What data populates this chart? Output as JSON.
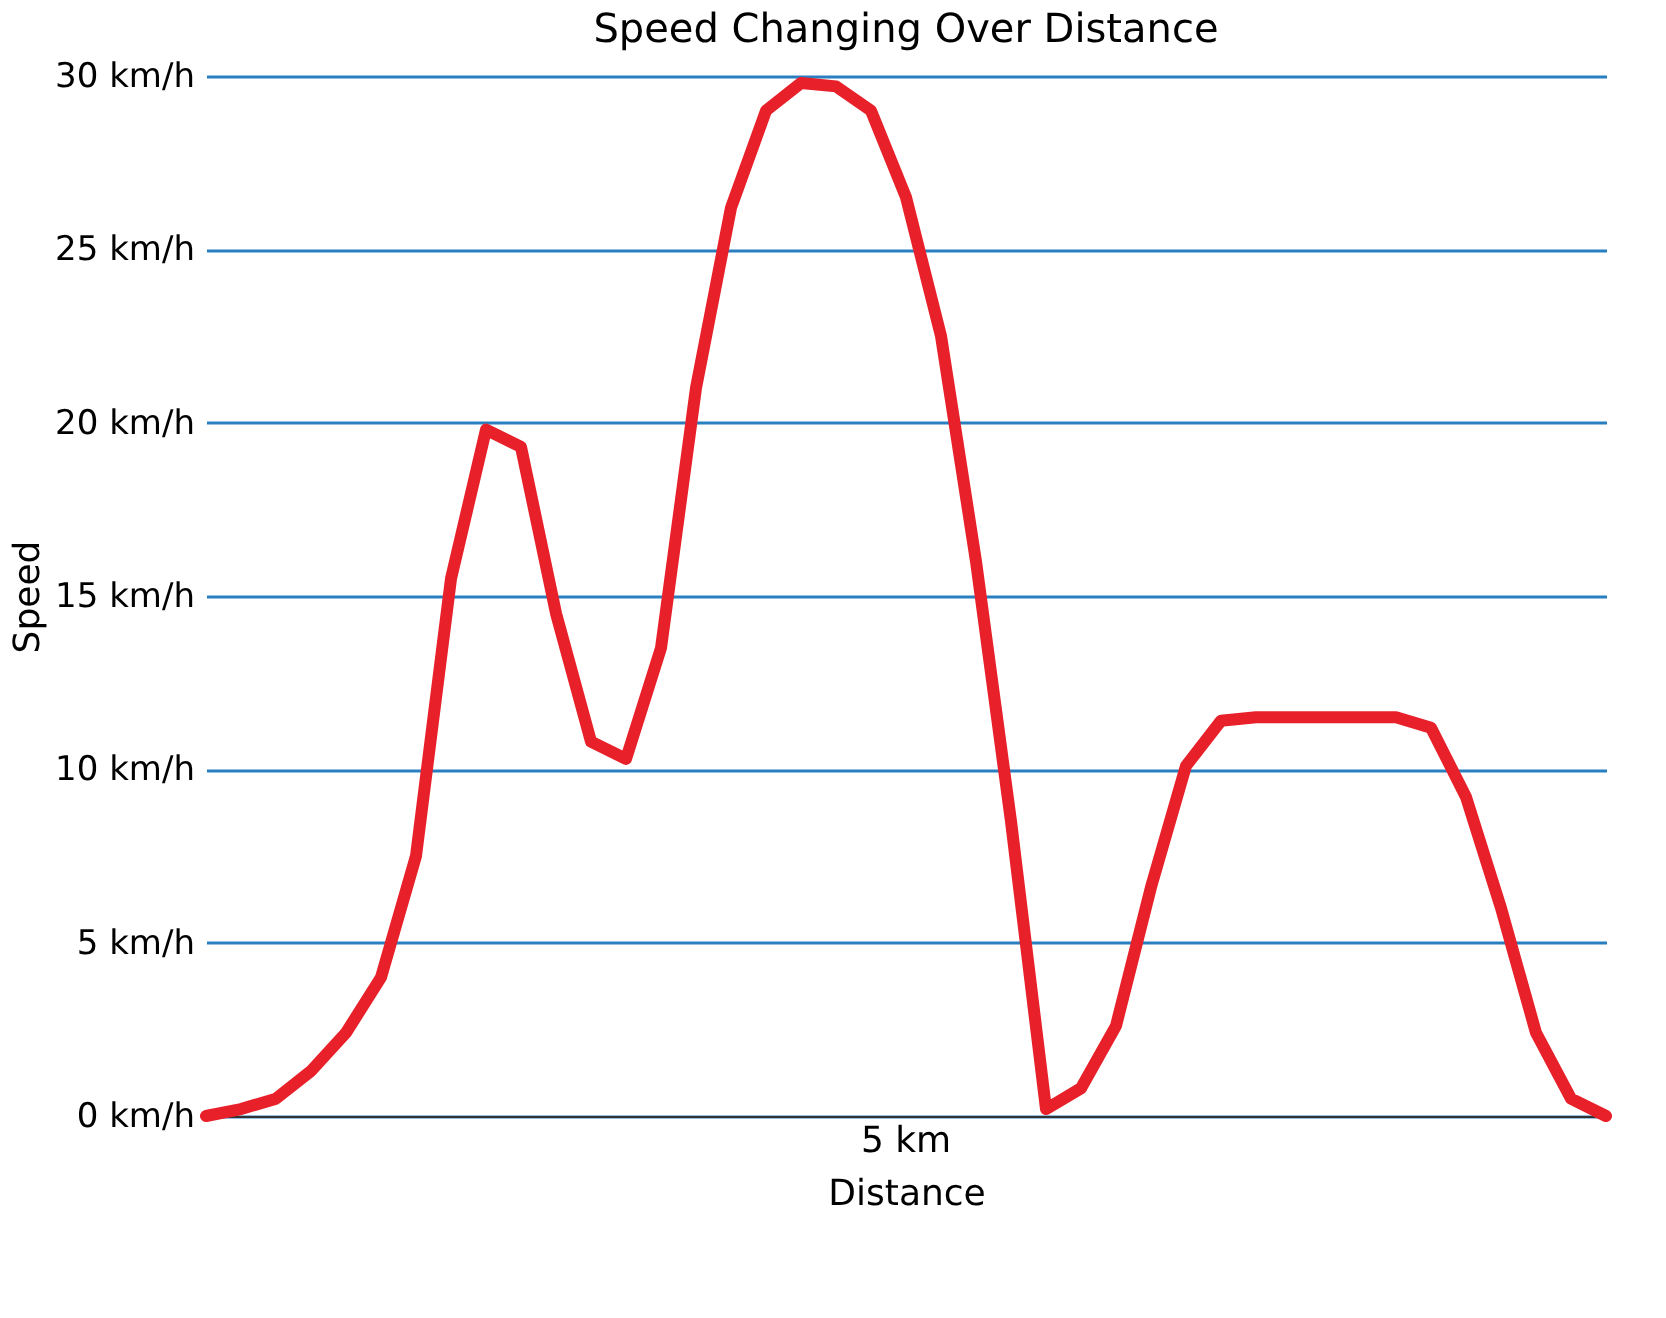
{
  "chart_data": {
    "type": "line",
    "title": "Speed Changing Over Distance",
    "xlabel": "Distance",
    "ylabel": "Speed",
    "categories": [
      null,
      null,
      null,
      null,
      null,
      null,
      null,
      null,
      null,
      null,
      null,
      null,
      null,
      null,
      null,
      null,
      null,
      null,
      null,
      null,
      null,
      null,
      null,
      null,
      null,
      null,
      null,
      null,
      null,
      null,
      null,
      null,
      null,
      null,
      null,
      null,
      null,
      null,
      null,
      null,
      null
    ],
    "series": [
      {
        "color": "#e8202a",
        "values": [
          0,
          0.2,
          0.5,
          1.3,
          2.4,
          4.0,
          7.5,
          15.5,
          19.8,
          19.3,
          14.5,
          10.8,
          10.3,
          13.5,
          21.0,
          26.2,
          29.0,
          29.8,
          29.7,
          29.0,
          26.5,
          22.5,
          16.0,
          8.5,
          0.2,
          0.8,
          2.6,
          6.6,
          10.1,
          11.4,
          11.5,
          11.5,
          11.5,
          11.5,
          11.5,
          11.2,
          9.2,
          6.0,
          2.4,
          0.5,
          0
        ]
      }
    ],
    "ylim": [
      0,
      30
    ],
    "yticks": [
      {
        "value": 0,
        "label": "0 km/h"
      },
      {
        "value": 5,
        "label": "5 km/h"
      },
      {
        "value": 10,
        "label": "10 km/h"
      },
      {
        "value": 15,
        "label": "15 km/h"
      },
      {
        "value": 20,
        "label": "20 km/h"
      },
      {
        "value": 25,
        "label": "25 km/h"
      },
      {
        "value": 30,
        "label": "30 km/h"
      }
    ],
    "tick_labels": "y",
    "grid": "y",
    "marker": "none",
    "line_style": "solid",
    "annotations": [
      "5 km"
    ]
  }
}
